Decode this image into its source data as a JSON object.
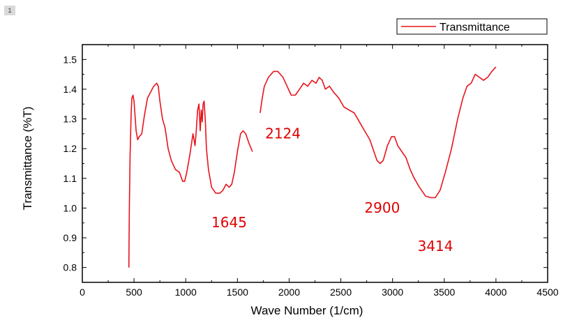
{
  "page_badge": "1",
  "chart_data": {
    "type": "line",
    "title": "",
    "xlabel": "Wave Number (1/cm)",
    "ylabel": "Transmittance (%T)",
    "xlim": [
      0,
      4500
    ],
    "ylim": [
      0.75,
      1.55
    ],
    "x_ticks": [
      0,
      500,
      1000,
      1500,
      2000,
      2500,
      3000,
      3500,
      4000,
      4500
    ],
    "y_ticks": [
      0.8,
      0.9,
      1.0,
      1.1,
      1.2,
      1.3,
      1.4,
      1.5
    ],
    "x_tick_labels": [
      "0",
      "500",
      "1000",
      "1500",
      "2000",
      "2500",
      "3000",
      "3500",
      "4000",
      "4500"
    ],
    "y_tick_labels": [
      "0.8",
      "0.9",
      "1.0",
      "1.1",
      "1.2",
      "1.3",
      "1.4",
      "1.5"
    ],
    "grid": false,
    "legend_position": "top-right",
    "line_color": "#e8131b",
    "annotation_color": "#e00000",
    "series": [
      {
        "name": "Transmittance",
        "segments": [
          [
            [
              450,
              0.8
            ],
            [
              455,
              1.0
            ],
            [
              462,
              1.18
            ],
            [
              472,
              1.32
            ],
            [
              480,
              1.37
            ],
            [
              490,
              1.38
            ],
            [
              500,
              1.36
            ],
            [
              510,
              1.31
            ],
            [
              520,
              1.26
            ],
            [
              535,
              1.23
            ],
            [
              550,
              1.24
            ],
            [
              575,
              1.25
            ],
            [
              600,
              1.31
            ],
            [
              630,
              1.37
            ],
            [
              660,
              1.39
            ],
            [
              690,
              1.41
            ],
            [
              720,
              1.42
            ],
            [
              735,
              1.41
            ],
            [
              750,
              1.36
            ],
            [
              775,
              1.3
            ],
            [
              800,
              1.27
            ],
            [
              830,
              1.2
            ],
            [
              860,
              1.16
            ],
            [
              900,
              1.13
            ],
            [
              940,
              1.12
            ],
            [
              970,
              1.09
            ],
            [
              990,
              1.09
            ],
            [
              1010,
              1.12
            ],
            [
              1040,
              1.18
            ],
            [
              1070,
              1.25
            ],
            [
              1090,
              1.21
            ],
            [
              1100,
              1.25
            ],
            [
              1115,
              1.33
            ],
            [
              1128,
              1.35
            ],
            [
              1140,
              1.26
            ],
            [
              1150,
              1.33
            ],
            [
              1160,
              1.29
            ],
            [
              1168,
              1.35
            ],
            [
              1178,
              1.36
            ],
            [
              1190,
              1.29
            ],
            [
              1200,
              1.2
            ],
            [
              1220,
              1.13
            ],
            [
              1250,
              1.07
            ],
            [
              1290,
              1.05
            ],
            [
              1330,
              1.05
            ],
            [
              1360,
              1.06
            ],
            [
              1390,
              1.08
            ],
            [
              1420,
              1.07
            ],
            [
              1445,
              1.08
            ],
            [
              1470,
              1.12
            ],
            [
              1500,
              1.19
            ],
            [
              1530,
              1.25
            ],
            [
              1555,
              1.26
            ],
            [
              1580,
              1.25
            ],
            [
              1610,
              1.22
            ],
            [
              1645,
              1.19
            ]
          ],
          [
            [
              1720,
              1.32
            ],
            [
              1740,
              1.37
            ],
            [
              1760,
              1.41
            ],
            [
              1800,
              1.44
            ],
            [
              1850,
              1.46
            ],
            [
              1890,
              1.46
            ],
            [
              1940,
              1.44
            ],
            [
              1980,
              1.41
            ],
            [
              2020,
              1.38
            ],
            [
              2060,
              1.38
            ],
            [
              2100,
              1.4
            ],
            [
              2140,
              1.42
            ],
            [
              2180,
              1.41
            ],
            [
              2220,
              1.43
            ],
            [
              2260,
              1.42
            ],
            [
              2290,
              1.44
            ],
            [
              2320,
              1.43
            ],
            [
              2350,
              1.4
            ],
            [
              2390,
              1.41
            ],
            [
              2430,
              1.39
            ],
            [
              2480,
              1.37
            ],
            [
              2530,
              1.34
            ],
            [
              2580,
              1.33
            ],
            [
              2630,
              1.32
            ],
            [
              2680,
              1.29
            ],
            [
              2730,
              1.26
            ],
            [
              2780,
              1.23
            ],
            [
              2820,
              1.19
            ],
            [
              2850,
              1.16
            ],
            [
              2880,
              1.15
            ],
            [
              2910,
              1.16
            ],
            [
              2950,
              1.21
            ],
            [
              2990,
              1.24
            ],
            [
              3020,
              1.24
            ],
            [
              3050,
              1.21
            ],
            [
              3090,
              1.19
            ],
            [
              3130,
              1.17
            ],
            [
              3170,
              1.13
            ],
            [
              3210,
              1.1
            ],
            [
              3260,
              1.07
            ],
            [
              3320,
              1.04
            ],
            [
              3370,
              1.035
            ],
            [
              3414,
              1.035
            ],
            [
              3460,
              1.06
            ],
            [
              3510,
              1.12
            ],
            [
              3570,
              1.2
            ],
            [
              3630,
              1.3
            ],
            [
              3680,
              1.37
            ],
            [
              3720,
              1.41
            ],
            [
              3760,
              1.42
            ],
            [
              3800,
              1.45
            ],
            [
              3840,
              1.44
            ],
            [
              3880,
              1.43
            ],
            [
              3920,
              1.44
            ],
            [
              3960,
              1.46
            ],
            [
              4000,
              1.475
            ]
          ]
        ]
      }
    ],
    "annotations": [
      {
        "text": "1645",
        "x": 1420,
        "y": 0.935
      },
      {
        "text": "2124",
        "x": 1940,
        "y": 1.235
      },
      {
        "text": "2900",
        "x": 2900,
        "y": 0.985
      },
      {
        "text": "3414",
        "x": 3414,
        "y": 0.855
      }
    ]
  }
}
